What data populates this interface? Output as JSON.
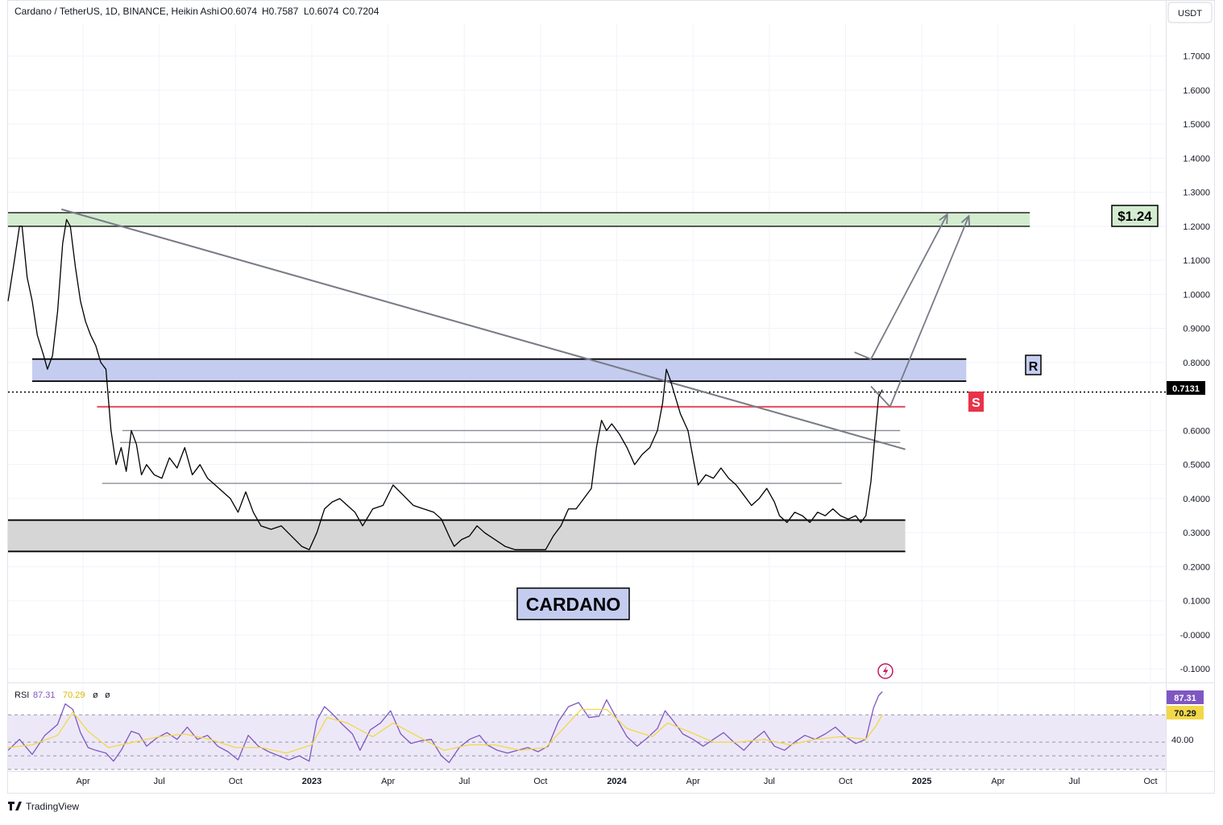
{
  "header": {
    "symbol": "Cardano / TetherUS, 1D, BINANCE, Heikin Ashi",
    "open": "O0.6074",
    "high": "H0.7587",
    "low": "L0.6074",
    "close": "C0.7204"
  },
  "currency_button": "USDT",
  "brand": "TradingView",
  "rsi_legend": {
    "name": "RSI",
    "value": "87.31",
    "ma_value": "70.29",
    "extra1": "ø",
    "extra2": "ø"
  },
  "colors": {
    "price_line": "#000000",
    "green_zone": "#d3ecd0",
    "blue_zone": "#c4cdf0",
    "gray_zone": "#d6d6d6",
    "support_line": "#e84a5f",
    "trendline": "#787b86",
    "rsi_line": "#7e57c2",
    "rsi_ma": "#f2d848",
    "rsi_band": "#ede8f7"
  },
  "annotations": {
    "target_label": "$1.24",
    "resistance_label": "R",
    "support_label": "S",
    "title_label": "CARDANO",
    "current_price": "0.7131",
    "rsi_current": "87.31",
    "rsi_ma_current": "70.29",
    "rsi_level": "40.00"
  },
  "chart_data": {
    "type": "line",
    "title": "Cardano / TetherUS, 1D, BINANCE, Heikin Ashi",
    "xlabel": "",
    "ylabel": "USDT",
    "ylim": [
      -0.135,
      1.77
    ],
    "y_ticks": [
      "1.7000",
      "1.6000",
      "1.5000",
      "1.4000",
      "1.3000",
      "1.2000",
      "1.1000",
      "1.0000",
      "0.9000",
      "0.8000",
      "0.6000",
      "0.5000",
      "0.4000",
      "0.3000",
      "0.2000",
      "0.1000",
      "-0.0000",
      "-0.1000"
    ],
    "y_tick_values": [
      1.7,
      1.6,
      1.5,
      1.4,
      1.3,
      1.2,
      1.1,
      1.0,
      0.9,
      0.8,
      0.6,
      0.5,
      0.4,
      0.3,
      0.2,
      0.1,
      0.0,
      -0.1
    ],
    "x_ticks": [
      "Apr",
      "Jul",
      "Oct",
      "2023",
      "Apr",
      "Jul",
      "Oct",
      "2024",
      "Apr",
      "Jul",
      "Oct",
      "2025",
      "Apr",
      "Jul",
      "Oct"
    ],
    "x_tick_months": [
      3,
      6,
      9,
      12,
      15,
      18,
      21,
      24,
      27,
      30,
      33,
      36,
      39,
      42,
      45
    ],
    "x_bold": [
      false,
      false,
      false,
      true,
      false,
      false,
      false,
      true,
      false,
      false,
      false,
      true,
      false,
      false,
      false
    ],
    "month_domain": [
      0.05,
      45.6
    ],
    "series": [
      {
        "name": "ADA/USDT",
        "points": [
          [
            0.05,
            0.98
          ],
          [
            0.3,
            1.1
          ],
          [
            0.5,
            1.2
          ],
          [
            0.6,
            1.2
          ],
          [
            0.8,
            1.05
          ],
          [
            1.0,
            0.98
          ],
          [
            1.2,
            0.88
          ],
          [
            1.45,
            0.82
          ],
          [
            1.6,
            0.78
          ],
          [
            1.8,
            0.82
          ],
          [
            2.0,
            0.95
          ],
          [
            2.2,
            1.15
          ],
          [
            2.35,
            1.22
          ],
          [
            2.5,
            1.2
          ],
          [
            2.7,
            1.08
          ],
          [
            2.9,
            0.98
          ],
          [
            3.1,
            0.92
          ],
          [
            3.3,
            0.88
          ],
          [
            3.5,
            0.85
          ],
          [
            3.7,
            0.8
          ],
          [
            3.9,
            0.78
          ],
          [
            4.1,
            0.6
          ],
          [
            4.3,
            0.5
          ],
          [
            4.5,
            0.55
          ],
          [
            4.7,
            0.48
          ],
          [
            4.9,
            0.6
          ],
          [
            5.1,
            0.56
          ],
          [
            5.3,
            0.47
          ],
          [
            5.5,
            0.5
          ],
          [
            5.8,
            0.47
          ],
          [
            6.1,
            0.46
          ],
          [
            6.4,
            0.52
          ],
          [
            6.7,
            0.49
          ],
          [
            7.0,
            0.55
          ],
          [
            7.3,
            0.47
          ],
          [
            7.6,
            0.5
          ],
          [
            7.9,
            0.46
          ],
          [
            8.2,
            0.44
          ],
          [
            8.5,
            0.42
          ],
          [
            8.8,
            0.4
          ],
          [
            9.1,
            0.36
          ],
          [
            9.4,
            0.42
          ],
          [
            9.7,
            0.36
          ],
          [
            10.0,
            0.32
          ],
          [
            10.4,
            0.31
          ],
          [
            10.8,
            0.32
          ],
          [
            11.2,
            0.29
          ],
          [
            11.6,
            0.26
          ],
          [
            11.9,
            0.25
          ],
          [
            12.2,
            0.3
          ],
          [
            12.5,
            0.37
          ],
          [
            12.8,
            0.39
          ],
          [
            13.1,
            0.4
          ],
          [
            13.4,
            0.38
          ],
          [
            13.7,
            0.36
          ],
          [
            14.0,
            0.32
          ],
          [
            14.4,
            0.37
          ],
          [
            14.8,
            0.38
          ],
          [
            15.2,
            0.44
          ],
          [
            15.6,
            0.41
          ],
          [
            16.0,
            0.38
          ],
          [
            16.4,
            0.37
          ],
          [
            16.8,
            0.36
          ],
          [
            17.1,
            0.34
          ],
          [
            17.4,
            0.29
          ],
          [
            17.6,
            0.26
          ],
          [
            17.9,
            0.28
          ],
          [
            18.2,
            0.29
          ],
          [
            18.5,
            0.32
          ],
          [
            18.8,
            0.3
          ],
          [
            19.2,
            0.28
          ],
          [
            19.6,
            0.26
          ],
          [
            20.0,
            0.25
          ],
          [
            20.4,
            0.25
          ],
          [
            20.8,
            0.25
          ],
          [
            21.2,
            0.25
          ],
          [
            21.5,
            0.29
          ],
          [
            21.8,
            0.32
          ],
          [
            22.1,
            0.37
          ],
          [
            22.4,
            0.37
          ],
          [
            22.7,
            0.4
          ],
          [
            23.0,
            0.43
          ],
          [
            23.2,
            0.55
          ],
          [
            23.4,
            0.63
          ],
          [
            23.6,
            0.6
          ],
          [
            23.8,
            0.62
          ],
          [
            24.1,
            0.59
          ],
          [
            24.4,
            0.55
          ],
          [
            24.7,
            0.5
          ],
          [
            25.0,
            0.53
          ],
          [
            25.3,
            0.55
          ],
          [
            25.6,
            0.6
          ],
          [
            25.8,
            0.68
          ],
          [
            25.95,
            0.78
          ],
          [
            26.1,
            0.75
          ],
          [
            26.3,
            0.7
          ],
          [
            26.5,
            0.65
          ],
          [
            26.8,
            0.6
          ],
          [
            27.0,
            0.52
          ],
          [
            27.2,
            0.44
          ],
          [
            27.5,
            0.47
          ],
          [
            27.8,
            0.46
          ],
          [
            28.1,
            0.49
          ],
          [
            28.4,
            0.46
          ],
          [
            28.7,
            0.44
          ],
          [
            29.0,
            0.41
          ],
          [
            29.3,
            0.38
          ],
          [
            29.6,
            0.4
          ],
          [
            29.9,
            0.43
          ],
          [
            30.2,
            0.39
          ],
          [
            30.4,
            0.35
          ],
          [
            30.7,
            0.33
          ],
          [
            31.0,
            0.36
          ],
          [
            31.3,
            0.35
          ],
          [
            31.6,
            0.33
          ],
          [
            31.9,
            0.36
          ],
          [
            32.2,
            0.35
          ],
          [
            32.5,
            0.37
          ],
          [
            32.8,
            0.35
          ],
          [
            33.1,
            0.34
          ],
          [
            33.4,
            0.35
          ],
          [
            33.6,
            0.33
          ],
          [
            33.8,
            0.35
          ],
          [
            34.0,
            0.45
          ],
          [
            34.15,
            0.58
          ],
          [
            34.3,
            0.7
          ],
          [
            34.45,
            0.72
          ]
        ]
      },
      {
        "name": "RSI",
        "points": [
          [
            0.05,
            44
          ],
          [
            0.5,
            52
          ],
          [
            1.0,
            41
          ],
          [
            1.5,
            55
          ],
          [
            2.0,
            63
          ],
          [
            2.3,
            78
          ],
          [
            2.6,
            74
          ],
          [
            2.9,
            57
          ],
          [
            3.2,
            46
          ],
          [
            3.5,
            44
          ],
          [
            3.9,
            42
          ],
          [
            4.2,
            36
          ],
          [
            4.5,
            44
          ],
          [
            4.9,
            58
          ],
          [
            5.2,
            56
          ],
          [
            5.5,
            47
          ],
          [
            5.9,
            53
          ],
          [
            6.3,
            57
          ],
          [
            6.7,
            52
          ],
          [
            7.1,
            61
          ],
          [
            7.5,
            52
          ],
          [
            7.9,
            55
          ],
          [
            8.3,
            47
          ],
          [
            8.7,
            43
          ],
          [
            9.1,
            37
          ],
          [
            9.5,
            55
          ],
          [
            9.9,
            47
          ],
          [
            10.3,
            43
          ],
          [
            10.7,
            40
          ],
          [
            11.1,
            37
          ],
          [
            11.5,
            40
          ],
          [
            11.9,
            36
          ],
          [
            12.2,
            66
          ],
          [
            12.5,
            76
          ],
          [
            12.8,
            71
          ],
          [
            13.2,
            63
          ],
          [
            13.6,
            56
          ],
          [
            13.9,
            44
          ],
          [
            14.3,
            59
          ],
          [
            14.7,
            64
          ],
          [
            15.1,
            73
          ],
          [
            15.5,
            56
          ],
          [
            15.9,
            49
          ],
          [
            16.3,
            51
          ],
          [
            16.7,
            52
          ],
          [
            17.1,
            40
          ],
          [
            17.4,
            35
          ],
          [
            17.8,
            46
          ],
          [
            18.2,
            52
          ],
          [
            18.6,
            55
          ],
          [
            18.9,
            48
          ],
          [
            19.3,
            44
          ],
          [
            19.7,
            42
          ],
          [
            20.1,
            44
          ],
          [
            20.5,
            46
          ],
          [
            20.9,
            43
          ],
          [
            21.3,
            47
          ],
          [
            21.7,
            65
          ],
          [
            22.1,
            76
          ],
          [
            22.5,
            79
          ],
          [
            22.9,
            68
          ],
          [
            23.3,
            69
          ],
          [
            23.6,
            81
          ],
          [
            24.0,
            67
          ],
          [
            24.4,
            54
          ],
          [
            24.8,
            47
          ],
          [
            25.2,
            53
          ],
          [
            25.6,
            60
          ],
          [
            25.9,
            73
          ],
          [
            26.2,
            66
          ],
          [
            26.6,
            56
          ],
          [
            27.0,
            52
          ],
          [
            27.4,
            47
          ],
          [
            27.8,
            52
          ],
          [
            28.2,
            57
          ],
          [
            28.6,
            50
          ],
          [
            29.0,
            44
          ],
          [
            29.4,
            52
          ],
          [
            29.8,
            58
          ],
          [
            30.2,
            47
          ],
          [
            30.6,
            44
          ],
          [
            31.0,
            50
          ],
          [
            31.4,
            55
          ],
          [
            31.8,
            52
          ],
          [
            32.2,
            56
          ],
          [
            32.6,
            61
          ],
          [
            33.0,
            54
          ],
          [
            33.4,
            49
          ],
          [
            33.8,
            52
          ],
          [
            34.1,
            75
          ],
          [
            34.3,
            84
          ],
          [
            34.45,
            87
          ]
        ]
      },
      {
        "name": "RSI-based MA",
        "points": [
          [
            0.05,
            46
          ],
          [
            1.0,
            48
          ],
          [
            2.0,
            55
          ],
          [
            2.6,
            72
          ],
          [
            3.2,
            58
          ],
          [
            4.0,
            46
          ],
          [
            5.0,
            50
          ],
          [
            6.0,
            54
          ],
          [
            7.0,
            56
          ],
          [
            8.0,
            52
          ],
          [
            9.0,
            46
          ],
          [
            10.0,
            46
          ],
          [
            11.0,
            42
          ],
          [
            12.0,
            48
          ],
          [
            12.6,
            68
          ],
          [
            13.4,
            64
          ],
          [
            14.4,
            54
          ],
          [
            15.2,
            64
          ],
          [
            16.2,
            54
          ],
          [
            17.2,
            44
          ],
          [
            18.2,
            48
          ],
          [
            19.2,
            48
          ],
          [
            20.2,
            44
          ],
          [
            21.2,
            46
          ],
          [
            22.0,
            62
          ],
          [
            22.6,
            74
          ],
          [
            23.6,
            74
          ],
          [
            24.4,
            60
          ],
          [
            25.4,
            54
          ],
          [
            26.0,
            64
          ],
          [
            26.8,
            58
          ],
          [
            27.8,
            50
          ],
          [
            28.8,
            50
          ],
          [
            29.8,
            52
          ],
          [
            30.8,
            48
          ],
          [
            31.8,
            52
          ],
          [
            32.8,
            54
          ],
          [
            33.8,
            52
          ],
          [
            34.2,
            62
          ],
          [
            34.45,
            70.29
          ]
        ]
      }
    ],
    "zones": [
      {
        "name": "target-zone",
        "y_range": [
          1.2,
          1.24
        ],
        "from_month": 0.05,
        "to_month": 40.25
      },
      {
        "name": "resistance-zone",
        "y_range": [
          0.745,
          0.81
        ],
        "from_month": 1.0,
        "to_month": 37.75
      },
      {
        "name": "base-zone",
        "y_range": [
          0.245,
          0.337
        ],
        "from_month": 0.05,
        "to_month": 35.35
      }
    ],
    "levels": [
      {
        "name": "support-line",
        "y": 0.67,
        "from_month": 3.55,
        "to_month": 35.35
      },
      {
        "name": "horizontal-line-1",
        "y": 0.6,
        "from_month": 4.55,
        "to_month": 35.15
      },
      {
        "name": "horizontal-line-2",
        "y": 0.565,
        "from_month": 4.45,
        "to_month": 35.15
      },
      {
        "name": "horizontal-line-3",
        "y": 0.445,
        "from_month": 3.75,
        "to_month": 32.85
      },
      {
        "name": "current-price-line",
        "y": 0.7131,
        "from_month": 0.05,
        "to_month": 45.6
      }
    ],
    "trendline": {
      "from": [
        2.15,
        1.25
      ],
      "to": [
        35.35,
        0.545
      ]
    },
    "projection_arrows": [
      {
        "from": [
          34.0,
          0.73
        ],
        "to": [
          34.75,
          0.67
        ],
        "to2": [
          37.85,
          1.23
        ]
      },
      {
        "from": [
          33.35,
          0.83
        ],
        "to": [
          34.0,
          0.81
        ],
        "to2": [
          37.0,
          1.235
        ]
      }
    ],
    "rsi_ylim": [
      30,
      92
    ],
    "rsi_levels": [
      70,
      50,
      40,
      30
    ]
  }
}
